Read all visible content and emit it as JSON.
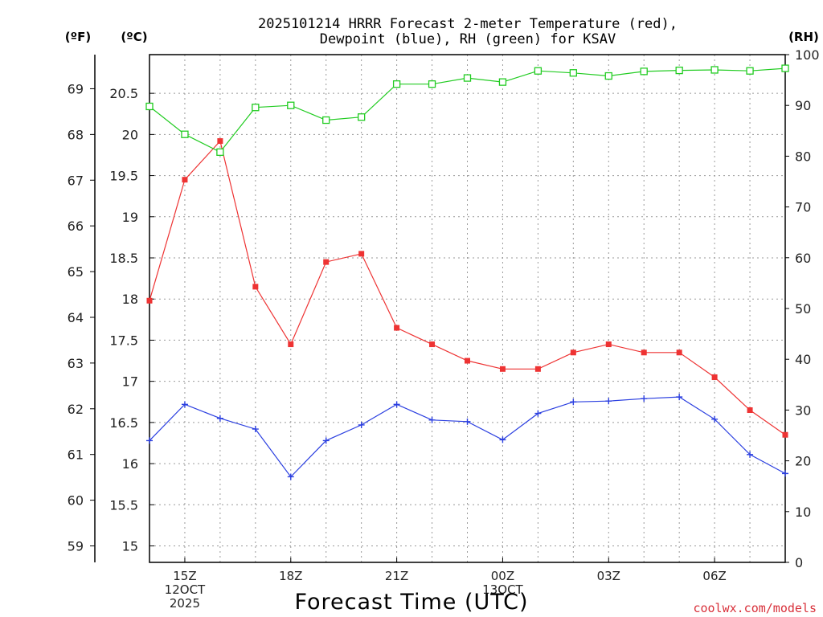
{
  "chart_data": {
    "type": "line",
    "title_lines": [
      "2025101214 HRRR Forecast 2-meter Temperature (red),",
      "Dewpoint (blue), RH (green) for KSAV"
    ],
    "xlabel": "Forecast Time (UTC)",
    "credit": "coolwx.com/models",
    "unit_labels": {
      "fahrenheit": "(ºF)",
      "celsius": "(ºC)",
      "rh": "(RH)"
    },
    "x_hours": [
      14,
      15,
      16,
      17,
      18,
      19,
      20,
      21,
      22,
      23,
      24,
      25,
      26,
      27,
      28,
      29,
      30,
      31,
      32
    ],
    "xlim": [
      14,
      32
    ],
    "x_ticks": [
      {
        "hour": 15,
        "lines": [
          "15Z",
          "12OCT",
          "2025"
        ]
      },
      {
        "hour": 18,
        "lines": [
          "18Z"
        ]
      },
      {
        "hour": 21,
        "lines": [
          "21Z"
        ]
      },
      {
        "hour": 24,
        "lines": [
          "00Z",
          "13OCT"
        ]
      },
      {
        "hour": 27,
        "lines": [
          "03Z"
        ]
      },
      {
        "hour": 30,
        "lines": [
          "06Z"
        ]
      }
    ],
    "celsius_axis": {
      "ylim": [
        14.8,
        20.97
      ],
      "ticks": [
        "15",
        "15.5",
        "16",
        "16.5",
        "17",
        "17.5",
        "18",
        "18.5",
        "19",
        "19.5",
        "20",
        "20.5"
      ]
    },
    "fahrenheit_axis": {
      "ticks": [
        "59",
        "60",
        "61",
        "62",
        "63",
        "64",
        "65",
        "66",
        "67",
        "68",
        "69"
      ]
    },
    "rh_axis": {
      "ylim": [
        0,
        100
      ],
      "ticks": [
        "0",
        "10",
        "20",
        "30",
        "40",
        "50",
        "60",
        "70",
        "80",
        "90",
        "100"
      ]
    },
    "series": [
      {
        "key": "temperature",
        "color": "#ee3333",
        "marker": "filled-square",
        "axis": "celsius",
        "values": [
          17.98,
          19.45,
          19.92,
          18.15,
          17.45,
          18.45,
          18.55,
          17.65,
          17.45,
          17.25,
          17.15,
          17.15,
          17.35,
          17.45,
          17.35,
          17.35,
          17.05,
          16.65,
          16.35
        ]
      },
      {
        "key": "dewpoint",
        "color": "#2b3fe0",
        "marker": "plus",
        "axis": "celsius",
        "values": [
          16.28,
          16.72,
          16.55,
          16.42,
          15.84,
          16.28,
          16.47,
          16.72,
          16.53,
          16.51,
          16.29,
          16.61,
          16.75,
          16.76,
          16.79,
          16.81,
          16.54,
          16.11,
          15.88
        ]
      },
      {
        "key": "rh",
        "color": "#22cc22",
        "marker": "open-square",
        "axis": "rh",
        "values": [
          89.8,
          84.3,
          80.8,
          89.6,
          90.0,
          87.1,
          87.7,
          94.2,
          94.2,
          95.4,
          94.6,
          96.8,
          96.4,
          95.8,
          96.7,
          96.9,
          97.0,
          96.8,
          97.3
        ]
      }
    ]
  }
}
